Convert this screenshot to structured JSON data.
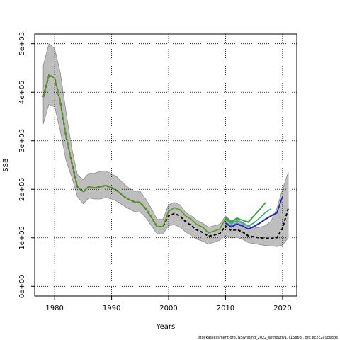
{
  "chart_data": {
    "type": "line",
    "xlabel": "Years",
    "ylabel": "SSB",
    "xlim": [
      1976.5,
      2022.5
    ],
    "ylim": [
      -20000,
      520000
    ],
    "x_ticks": [
      1980,
      1990,
      2000,
      2010,
      2020
    ],
    "y_ticks": [
      0,
      100000,
      200000,
      300000,
      400000,
      500000
    ],
    "y_tick_labels": [
      "0e+00",
      "1e+05",
      "2e+05",
      "3e+05",
      "4e+05",
      "5e+05"
    ],
    "grid": true,
    "caption": "stockassessment.org, NSwhiting_2022_withoutQ1, r15863 , git: ec2c2a0c6dde",
    "confidence_band": {
      "x": [
        1978,
        1979,
        1980,
        1981,
        1982,
        1983,
        1984,
        1985,
        1986,
        1987,
        1988,
        1989,
        1990,
        1991,
        1992,
        1993,
        1994,
        1995,
        1996,
        1997,
        1998,
        1999,
        2000,
        2001,
        2002,
        2003,
        2004,
        2005,
        2006,
        2007,
        2008,
        2009,
        2010,
        2011,
        2012,
        2013,
        2014,
        2015,
        2016,
        2017,
        2018,
        2019,
        2020,
        2021
      ],
      "lower": [
        335000,
        375000,
        370000,
        320000,
        260000,
        225000,
        185000,
        170000,
        182000,
        180000,
        180000,
        183000,
        180000,
        175000,
        167000,
        160000,
        154000,
        153000,
        142000,
        125000,
        108000,
        108000,
        125000,
        127000,
        122000,
        112000,
        105000,
        97000,
        93000,
        87000,
        91000,
        95000,
        105000,
        100000,
        101000,
        97000,
        90000,
        88000,
        86000,
        84000,
        83000,
        82000,
        85000,
        100000
      ],
      "upper": [
        455000,
        500000,
        490000,
        440000,
        360000,
        285000,
        230000,
        220000,
        233000,
        233000,
        237000,
        238000,
        232000,
        225000,
        213000,
        203000,
        196000,
        196000,
        180000,
        160000,
        138000,
        138000,
        168000,
        173000,
        168000,
        152000,
        145000,
        136000,
        130000,
        122000,
        125000,
        128000,
        145000,
        135000,
        138000,
        132000,
        125000,
        120000,
        122000,
        125000,
        135000,
        160000,
        200000,
        235000
      ]
    },
    "series": [
      {
        "color": "#000000",
        "style": "dashed",
        "x": [
          1978,
          1979,
          1980,
          1981,
          1982,
          1983,
          1984,
          1985,
          1986,
          1987,
          1988,
          1989,
          1990,
          1991,
          1992,
          1993,
          1994,
          1995,
          1996,
          1997,
          1998,
          1999,
          2000,
          2001,
          2002,
          2003,
          2004,
          2005,
          2006,
          2007,
          2008,
          2009,
          2010,
          2011,
          2012,
          2013,
          2014,
          2015,
          2016,
          2017,
          2018,
          2019,
          2020,
          2021
        ],
        "y": [
          390000,
          435000,
          430000,
          380000,
          310000,
          255000,
          205000,
          195000,
          205000,
          203000,
          205000,
          208000,
          203000,
          197000,
          187000,
          179000,
          174000,
          173000,
          160000,
          142000,
          123000,
          123000,
          145000,
          150000,
          145000,
          133000,
          125000,
          116000,
          111000,
          103000,
          106000,
          109000,
          124000,
          115000,
          117000,
          112000,
          104000,
          102000,
          100000,
          99000,
          99000,
          100000,
          120000,
          160000
        ]
      },
      {
        "color": "#5a9a22",
        "x": [
          1978,
          1979,
          1980,
          1981,
          1982,
          1983,
          1984,
          1985,
          1986,
          1987,
          1988,
          1989,
          1990,
          1991,
          1992,
          1993,
          1994,
          1995,
          1996,
          1997,
          1998,
          1999,
          2000,
          2001,
          2002,
          2003,
          2004,
          2005,
          2006,
          2007,
          2008,
          2009,
          2010,
          2011,
          2012,
          2013,
          2014,
          2015,
          2016,
          2017
        ],
        "y": [
          390000,
          435000,
          430000,
          380000,
          310000,
          255000,
          205000,
          195000,
          205000,
          203000,
          205000,
          208000,
          203000,
          197000,
          187000,
          179000,
          174000,
          173000,
          160000,
          142000,
          123000,
          123000,
          155000,
          162000,
          158000,
          145000,
          138000,
          127000,
          122000,
          110000,
          114000,
          118000,
          140000,
          132000,
          140000,
          136000,
          132000,
          145000,
          158000,
          173000
        ]
      },
      {
        "color": "#2aa84a",
        "x": [
          2010,
          2011,
          2012,
          2013,
          2014,
          2015,
          2016,
          2017
        ],
        "y": [
          142000,
          133000,
          141000,
          136000,
          133000,
          146000,
          159000,
          172000
        ]
      },
      {
        "color": "#3aa88e",
        "x": [
          2010,
          2011,
          2012,
          2013,
          2014,
          2015,
          2016,
          2017,
          2018
        ],
        "y": [
          137000,
          129000,
          135000,
          130000,
          124000,
          131000,
          141000,
          152000,
          160000
        ]
      },
      {
        "color": "#3a74c9",
        "x": [
          2010,
          2011,
          2012,
          2013,
          2014,
          2015,
          2016,
          2017,
          2018,
          2019
        ],
        "y": [
          132000,
          124000,
          130000,
          125000,
          118000,
          124000,
          131000,
          139000,
          146000,
          152000
        ]
      },
      {
        "color": "#1f1fb0",
        "x": [
          2010,
          2011,
          2012,
          2013,
          2014,
          2015,
          2016,
          2017,
          2018,
          2019,
          2020
        ],
        "y": [
          130000,
          122000,
          128000,
          124000,
          118000,
          123000,
          130000,
          138000,
          145000,
          151000,
          185000
        ]
      }
    ]
  }
}
